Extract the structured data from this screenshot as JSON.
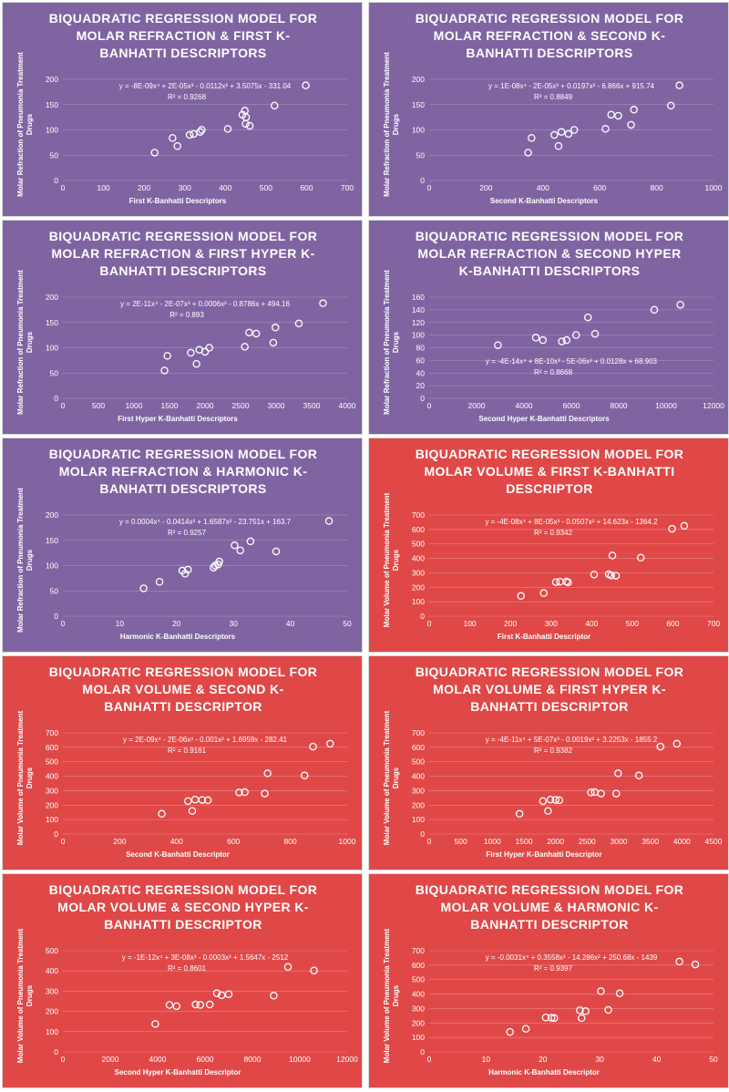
{
  "chart_data": [
    {
      "type": "scatter",
      "title_lines": [
        "BIQUADRATIC REGRESSION MODEL FOR",
        "MOLAR REFRACTION & FIRST K-",
        "BANHATTI DESCRIPTORS"
      ],
      "bg": "#8064a2",
      "xlabel": "First K-Banhatti Descriptors",
      "ylabel": "Molar Refraction of Pneumonia Treatment Drugs",
      "xlim": [
        0,
        700
      ],
      "xticks": [
        0,
        100,
        200,
        300,
        400,
        500,
        600,
        700
      ],
      "ylim": [
        0,
        200
      ],
      "yticks": [
        0,
        50,
        100,
        150,
        200
      ],
      "equation": "y = -8E-09x⁴ + 2E-05x³ - 0.0112x² + 3.5075x - 331.04",
      "r2": "R² = 0.9268",
      "x": [
        226,
        270,
        282,
        312,
        322,
        338,
        342,
        406,
        442,
        448,
        450,
        451,
        460,
        521,
        598
      ],
      "y": [
        55,
        84,
        68,
        90,
        92,
        96,
        100,
        102,
        130,
        138,
        112,
        125,
        108,
        148,
        188
      ]
    },
    {
      "type": "scatter",
      "title_lines": [
        "BIQUADRATIC REGRESSION MODEL FOR",
        "MOLAR REFRACTION & SECOND K-",
        "BANHATTI DESCRIPTORS"
      ],
      "bg": "#8064a2",
      "xlabel": "Second K-Banhatti Descriptors",
      "ylabel": "Molar Refraction of Pneumonia Treatment Drugs",
      "xlim": [
        0,
        1000
      ],
      "xticks": [
        0,
        200,
        400,
        600,
        800,
        1000
      ],
      "ylim": [
        0,
        200
      ],
      "yticks": [
        0,
        50,
        100,
        150,
        200
      ],
      "equation": "y = 1E-08x⁴ - 2E-05x³ + 0.0197x² - 6.866x + 915.74",
      "r2": "R² = 0.8849",
      "x": [
        348,
        360,
        440,
        455,
        465,
        490,
        510,
        620,
        640,
        665,
        710,
        720,
        850,
        880
      ],
      "y": [
        55,
        84,
        90,
        68,
        96,
        92,
        100,
        102,
        130,
        128,
        110,
        140,
        148,
        188
      ]
    },
    {
      "type": "scatter",
      "title_lines": [
        "BIQUADRATIC REGRESSION MODEL FOR",
        "MOLAR REFRACTION & FIRST HYPER K-",
        "BANHATTI DESCRIPTORS"
      ],
      "bg": "#8064a2",
      "xlabel": "First Hyper K-Banhatti Descriptors",
      "ylabel": "Molar Refraction of Pneumonia Treatment Drugs",
      "xlim": [
        0,
        4000
      ],
      "xticks": [
        0,
        500,
        1000,
        1500,
        2000,
        2500,
        3000,
        3500,
        4000
      ],
      "ylim": [
        0,
        200
      ],
      "yticks": [
        0,
        50,
        100,
        150,
        200
      ],
      "equation": "y = 2E-11x⁴ - 2E-07x³ + 0.0006x² - 0.8786x + 494.16",
      "r2": "R² = 0.893",
      "x": [
        1430,
        1470,
        1800,
        1880,
        1920,
        2000,
        2060,
        2560,
        2620,
        2720,
        2960,
        2990,
        3320,
        3660
      ],
      "y": [
        55,
        84,
        90,
        68,
        96,
        92,
        100,
        102,
        130,
        128,
        110,
        140,
        148,
        188
      ]
    },
    {
      "type": "scatter",
      "title_lines": [
        "BIQUADRATIC REGRESSION MODEL FOR",
        "MOLAR REFRACTION & SECOND HYPER",
        "K-BANHATTI DESCRIPTORS"
      ],
      "bg": "#8064a2",
      "xlabel": "Second Hyper K-Banhatti Descriptors",
      "ylabel": "Molar Refraction of Pneumonia Treatment Drugs",
      "xlim": [
        0,
        12000
      ],
      "xticks": [
        0,
        2000,
        4000,
        6000,
        8000,
        10000,
        12000
      ],
      "ylim": [
        0,
        160
      ],
      "yticks": [
        0,
        20,
        40,
        60,
        80,
        100,
        120,
        140,
        160
      ],
      "equation": "y = -4E-14x⁴ + 8E-10x³ - 5E-06x² + 0.0128x + 68.903",
      "r2": "R² = 0.8668",
      "x": [
        2900,
        4500,
        4800,
        5600,
        5800,
        6200,
        6700,
        7000,
        9500,
        10600
      ],
      "y": [
        84,
        96,
        92,
        90,
        92,
        100,
        128,
        102,
        140,
        148
      ]
    },
    {
      "type": "scatter",
      "title_lines": [
        "BIQUADRATIC REGRESSION MODEL FOR",
        "MOLAR REFRACTION & HARMONIC K-",
        "BANHATTI DESCRIPTORS"
      ],
      "bg": "#8064a2",
      "xlabel": "Harmonic K-Banhatti Descriptors",
      "ylabel": "Molar Refraction of Pneumonia Treatment Drugs",
      "xlim": [
        0,
        50
      ],
      "xticks": [
        0,
        10,
        20,
        30,
        40,
        50
      ],
      "ylim": [
        0,
        200
      ],
      "yticks": [
        0,
        50,
        100,
        150,
        200
      ],
      "equation": "y = 0.0004x⁴ - 0.0414x³ + 1.6587x² - 23.751x + 163.7",
      "r2": "R² = 0.9257",
      "x": [
        14.2,
        17,
        21,
        21.5,
        22,
        26.5,
        26.8,
        27.3,
        27.5,
        30.2,
        31.2,
        33,
        37.5,
        46.8
      ],
      "y": [
        55,
        68,
        90,
        84,
        92,
        96,
        100,
        102,
        108,
        140,
        130,
        148,
        128,
        188
      ]
    },
    {
      "type": "scatter",
      "title_lines": [
        "BIQUADRATIC REGRESSION MODEL FOR",
        "MOLAR VOLUME & FIRST K-BANHATTI",
        "DESCRIPTOR"
      ],
      "bg": "#e04848",
      "xlabel": "First K-Banhatti Descriptor",
      "ylabel": "Molar Volume of Pneumonia Treatment Drugs",
      "xlim": [
        0,
        700
      ],
      "xticks": [
        0,
        100,
        200,
        300,
        400,
        500,
        600,
        700
      ],
      "ylim": [
        0,
        700
      ],
      "yticks": [
        0,
        100,
        200,
        300,
        400,
        500,
        600,
        700
      ],
      "equation": "y = -4E-08x⁴ + 8E-05x³ - 0.0507x² + 14.623x - 1364.2",
      "r2": "R² = 0.9342",
      "x": [
        226,
        282,
        312,
        322,
        338,
        342,
        406,
        442,
        448,
        451,
        460,
        521,
        598,
        628
      ],
      "y": [
        140,
        160,
        236,
        238,
        240,
        234,
        288,
        290,
        282,
        420,
        280,
        405,
        605,
        625
      ]
    },
    {
      "type": "scatter",
      "title_lines": [
        "BIQUADRATIC REGRESSION MODEL FOR",
        "MOLAR VOLUME & SECOND K-",
        "BANHATTI DESCRIPTOR"
      ],
      "bg": "#e04848",
      "xlabel": "Second K-Banhatti Descriptor",
      "ylabel": "Molar Volume of Pneumonia Treatment Drugs",
      "xlim": [
        0,
        1000
      ],
      "xticks": [
        0,
        200,
        400,
        600,
        800,
        1000
      ],
      "ylim": [
        0,
        700
      ],
      "yticks": [
        0,
        100,
        200,
        300,
        400,
        500,
        600,
        700
      ],
      "equation": "y = 2E-09x⁴ - 2E-06x³ - 0.001x² + 1.6959x - 282.41",
      "r2": "R² = 0.9161",
      "x": [
        348,
        440,
        455,
        465,
        490,
        510,
        620,
        640,
        710,
        720,
        850,
        880,
        940
      ],
      "y": [
        140,
        228,
        160,
        238,
        236,
        234,
        288,
        290,
        280,
        420,
        405,
        605,
        625
      ]
    },
    {
      "type": "scatter",
      "title_lines": [
        "BIQUADRATIC REGRESSION MODEL FOR",
        "MOLAR VOLUME & FIRST HYPER K-",
        "BANHATTI DESCRIPTOR"
      ],
      "bg": "#e04848",
      "xlabel": "First Hyper K-Banhatti Descriptor",
      "ylabel": "Molar Volume of Pneumonia Treatment Drugs",
      "xlim": [
        0,
        4500
      ],
      "xticks": [
        0,
        500,
        1000,
        1500,
        2000,
        2500,
        3000,
        3500,
        4000,
        4500
      ],
      "ylim": [
        0,
        700
      ],
      "yticks": [
        0,
        100,
        200,
        300,
        400,
        500,
        600,
        700
      ],
      "equation": "y = -4E-11x⁴ + 5E-07x³ - 0.0019x² + 3.2253x - 1855.2",
      "r2": "R² = 0.9382",
      "x": [
        1430,
        1800,
        1880,
        1920,
        2000,
        2060,
        2560,
        2620,
        2720,
        2960,
        2990,
        3320,
        3660,
        3920
      ],
      "y": [
        140,
        228,
        160,
        238,
        236,
        234,
        288,
        290,
        280,
        280,
        420,
        405,
        605,
        625
      ]
    },
    {
      "type": "scatter",
      "title_lines": [
        "BIQUADRATIC REGRESSION MODEL FOR",
        "MOLAR VOLUME & SECOND HYPER K-",
        "BANHATTI DESCRIPTOR"
      ],
      "bg": "#e04848",
      "xlabel": "Second Hyper K-Banhatti Descriptor",
      "ylabel": "Molar Volume of Pneumonia Treatment Drugs",
      "xlim": [
        0,
        12000
      ],
      "xticks": [
        0,
        2000,
        4000,
        6000,
        8000,
        10000,
        12000
      ],
      "ylim": [
        0,
        500
      ],
      "yticks": [
        0,
        100,
        200,
        300,
        400,
        500
      ],
      "equation": "y = -1E-12x⁴ + 3E-08x³ - 0.0003x² + 1.5647x - 2512",
      "r2": "R² = 0.8601",
      "x": [
        3900,
        4500,
        4800,
        5600,
        5800,
        6200,
        6500,
        6700,
        7000,
        8900,
        9500,
        10600
      ],
      "y": [
        138,
        232,
        226,
        234,
        232,
        234,
        290,
        280,
        285,
        278,
        420,
        402
      ]
    },
    {
      "type": "scatter",
      "title_lines": [
        "BIQUADRATIC REGRESSION MODEL FOR",
        "MOLAR VOLUME & HARMONIC K-",
        "BANHATTI DESCRIPTOR"
      ],
      "bg": "#e04848",
      "xlabel": "Harmonic K-Banhatti Descriptor",
      "ylabel": "Molar Volume of Pneumonia Treatment Drugs",
      "xlim": [
        0,
        50
      ],
      "xticks": [
        0,
        10,
        20,
        30,
        40,
        50
      ],
      "ylim": [
        0,
        700
      ],
      "yticks": [
        0,
        100,
        200,
        300,
        400,
        500,
        600,
        700
      ],
      "equation": "y = -0.0031x⁴ + 0.3558x³ - 14.286x² + 250.68x - 1439",
      "r2": "R² = 0.9397",
      "x": [
        14.2,
        17,
        20.5,
        21.5,
        22,
        26.5,
        26.8,
        27.5,
        30.2,
        31.5,
        33.5,
        44,
        46.8
      ],
      "y": [
        138,
        160,
        238,
        236,
        234,
        288,
        234,
        282,
        420,
        290,
        405,
        625,
        605
      ]
    }
  ]
}
